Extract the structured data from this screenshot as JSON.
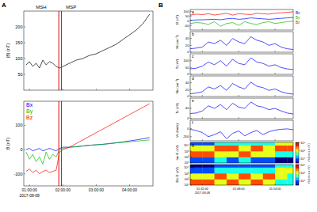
{
  "figure": {
    "panel_labels": [
      "A",
      "B"
    ]
  },
  "chart_data": [
    {
      "type": "line",
      "ylabel": "|B| (nT)",
      "x": [
        0.9,
        1.0,
        1.1,
        1.2,
        1.3,
        1.4,
        1.5,
        1.6,
        1.7,
        1.8,
        1.9,
        2.0,
        2.2,
        2.4,
        2.6,
        2.8,
        3.0,
        3.2,
        3.4,
        3.6,
        3.8,
        4.0,
        4.2,
        4.4,
        4.6
      ],
      "series": [
        {
          "color": "#000000",
          "values": [
            80,
            90,
            75,
            85,
            70,
            95,
            80,
            90,
            85,
            75,
            70,
            75,
            85,
            95,
            100,
            110,
            115,
            125,
            135,
            145,
            160,
            175,
            190,
            210,
            240
          ]
        }
      ],
      "xlim": [
        0.83,
        4.7
      ],
      "xticks": [
        {
          "value": 1,
          "label": "01:00:00"
        },
        {
          "value": 2,
          "label": "02:00:00"
        },
        {
          "value": 3,
          "label": "03:00:00"
        },
        {
          "value": 4,
          "label": "04:00:00"
        }
      ],
      "ylim": [
        0,
        250
      ],
      "yticks": [
        50,
        100,
        150,
        200
      ],
      "tick_labels": "y",
      "annotations": [
        {
          "text": "MSH",
          "x": 1.35
        },
        {
          "text": "MSP",
          "x": 2.25
        }
      ],
      "vlines": {
        "values": [
          1.88,
          1.96
        ],
        "color": "#e00000"
      }
    },
    {
      "type": "line",
      "ylabel": "B (nT)",
      "xlabel": "2017-08-08",
      "legend": "upper left",
      "x": [
        0.9,
        1.0,
        1.1,
        1.2,
        1.3,
        1.4,
        1.5,
        1.6,
        1.7,
        1.8,
        1.9,
        2.0,
        2.2,
        2.4,
        2.6,
        2.8,
        3.0,
        3.2,
        3.4,
        3.6,
        3.8,
        4.0,
        4.2,
        4.4,
        4.6
      ],
      "series": [
        {
          "name": "Bx",
          "color": "#0000ff",
          "values": [
            0,
            5,
            -5,
            0,
            5,
            -5,
            0,
            5,
            0,
            -5,
            5,
            10,
            10,
            12,
            15,
            18,
            20,
            22,
            25,
            28,
            32,
            36,
            40,
            45,
            50
          ]
        },
        {
          "name": "By",
          "color": "#00c000",
          "values": [
            -10,
            -40,
            -20,
            -50,
            -30,
            -60,
            -10,
            -40,
            -20,
            -30,
            0,
            5,
            10,
            12,
            15,
            18,
            20,
            22,
            25,
            28,
            30,
            32,
            35,
            38,
            40
          ]
        },
        {
          "name": "Bz",
          "color": "#ff0000",
          "values": [
            -90,
            -80,
            -95,
            -85,
            -100,
            -90,
            -85,
            -95,
            -90,
            -85,
            -10,
            0,
            10,
            25,
            40,
            55,
            70,
            85,
            100,
            115,
            130,
            145,
            160,
            175,
            190
          ]
        }
      ],
      "xlim": [
        0.83,
        4.7
      ],
      "xticks": [
        {
          "value": 1,
          "label": "01:00:00"
        },
        {
          "value": 2,
          "label": "02:00:00"
        },
        {
          "value": 3,
          "label": "03:00:00"
        },
        {
          "value": 4,
          "label": "04:00:00"
        }
      ],
      "ylim": [
        -150,
        200
      ],
      "yticks": [
        -100,
        0,
        100
      ],
      "vlines": {
        "values": [
          1.88,
          1.96
        ],
        "color": "#e00000"
      }
    },
    {
      "type": "line",
      "title": "a",
      "ylabel": "B (nT)",
      "legend": "right",
      "x": [
        100,
        101,
        102,
        103,
        104,
        105,
        106,
        107,
        108,
        109,
        110,
        111,
        112,
        113,
        114,
        115,
        116,
        117
      ],
      "series": [
        {
          "name": "Bx",
          "color": "#0000ff",
          "values": [
            5,
            8,
            10,
            12,
            15,
            10,
            20,
            25,
            15,
            20,
            30,
            25,
            20,
            15,
            20,
            25,
            30,
            35
          ]
        },
        {
          "name": "By",
          "color": "#00c000",
          "values": [
            -30,
            -20,
            -25,
            -40,
            -10,
            -60,
            -30,
            -20,
            -50,
            -10,
            -30,
            -40,
            -20,
            -10,
            -30,
            -20,
            -10,
            -5
          ]
        },
        {
          "name": "Bz",
          "color": "#ff0000",
          "values": [
            60,
            70,
            65,
            75,
            60,
            70,
            80,
            60,
            75,
            70,
            65,
            80,
            75,
            70,
            80,
            85,
            90,
            95
          ]
        }
      ],
      "xlim": [
        100,
        117
      ],
      "xticks": [
        {
          "value": 102,
          "label": "01:42:00"
        },
        {
          "value": 108,
          "label": "01:48:00"
        },
        {
          "value": 114,
          "label": "01:54:00"
        }
      ],
      "ylim": [
        -100,
        120
      ],
      "yticks": [
        -50,
        0,
        50,
        100
      ],
      "tick_labels": "y"
    },
    {
      "type": "line",
      "title": "b",
      "ylabel": "Ni (cm⁻³)",
      "x": [
        100,
        101,
        102,
        103,
        104,
        105,
        106,
        107,
        108,
        109,
        110,
        111,
        112,
        113,
        114,
        115,
        116,
        117
      ],
      "series": [
        {
          "color": "#0000ff",
          "values": [
            10,
            12,
            15,
            30,
            25,
            35,
            20,
            40,
            30,
            25,
            45,
            35,
            30,
            20,
            25,
            15,
            10,
            8
          ]
        }
      ],
      "xlim": [
        100,
        117
      ],
      "xticks": [
        {
          "value": 102,
          "label": "01:42:00"
        },
        {
          "value": 108,
          "label": "01:48:00"
        },
        {
          "value": 114,
          "label": "01:54:00"
        }
      ],
      "ylim": [
        0,
        60
      ],
      "yticks": [
        0,
        20,
        40
      ],
      "tick_labels": "y"
    },
    {
      "type": "line",
      "title": "c",
      "ylabel": "Ti (eV)",
      "x": [
        100,
        101,
        102,
        103,
        104,
        105,
        106,
        107,
        108,
        109,
        110,
        111,
        112,
        113,
        114,
        115,
        116,
        117
      ],
      "series": [
        {
          "color": "#0000ff",
          "values": [
            40,
            45,
            60,
            90,
            70,
            100,
            60,
            110,
            80,
            70,
            120,
            90,
            80,
            60,
            70,
            50,
            40,
            35
          ]
        }
      ],
      "xlim": [
        100,
        117
      ],
      "xticks": [
        {
          "value": 102,
          "label": "01:42:00"
        },
        {
          "value": 108,
          "label": "01:48:00"
        },
        {
          "value": 114,
          "label": "01:54:00"
        }
      ],
      "ylim": [
        0,
        150
      ],
      "yticks": [
        0,
        50,
        100
      ],
      "tick_labels": "y"
    },
    {
      "type": "line",
      "title": "d",
      "ylabel": "Ne (cm⁻³)",
      "x": [
        100,
        101,
        102,
        103,
        104,
        105,
        106,
        107,
        108,
        109,
        110,
        111,
        112,
        113,
        114,
        115,
        116,
        117
      ],
      "series": [
        {
          "color": "#0000ff",
          "values": [
            8,
            10,
            14,
            28,
            22,
            32,
            18,
            38,
            28,
            22,
            42,
            30,
            26,
            18,
            22,
            14,
            9,
            7
          ]
        }
      ],
      "xlim": [
        100,
        117
      ],
      "xticks": [
        {
          "value": 102,
          "label": "01:42:00"
        },
        {
          "value": 108,
          "label": "01:48:00"
        },
        {
          "value": 114,
          "label": "01:54:00"
        }
      ],
      "ylim": [
        0,
        60
      ],
      "yticks": [
        0,
        20,
        40
      ],
      "tick_labels": "y"
    },
    {
      "type": "line",
      "title": "e",
      "ylabel": "Te (eV)",
      "x": [
        100,
        101,
        102,
        103,
        104,
        105,
        106,
        107,
        108,
        109,
        110,
        111,
        112,
        113,
        114,
        115,
        116,
        117
      ],
      "series": [
        {
          "color": "#0000ff",
          "values": [
            20,
            22,
            30,
            50,
            40,
            55,
            35,
            60,
            45,
            40,
            65,
            50,
            45,
            35,
            40,
            30,
            22,
            18
          ]
        }
      ],
      "xlim": [
        100,
        117
      ],
      "xticks": [
        {
          "value": 102,
          "label": "01:42:00"
        },
        {
          "value": 108,
          "label": "01:48:00"
        },
        {
          "value": 114,
          "label": "01:54:00"
        }
      ],
      "ylim": [
        0,
        80
      ],
      "yticks": [
        0,
        40
      ],
      "tick_labels": "y"
    },
    {
      "type": "line",
      "title": "f",
      "ylabel": "Vx (km/s)",
      "x": [
        100,
        101,
        102,
        103,
        104,
        105,
        106,
        107,
        108,
        109,
        110,
        111,
        112,
        113,
        114,
        115,
        116,
        117
      ],
      "series": [
        {
          "color": "#0000ff",
          "values": [
            -20,
            -50,
            -100,
            -200,
            -150,
            -80,
            -250,
            -120,
            -60,
            -180,
            -100,
            -50,
            -150,
            -80,
            -40,
            -20,
            -10,
            -30
          ]
        }
      ],
      "xlim": [
        100,
        117
      ],
      "xticks": [
        {
          "value": 102,
          "label": "01:42:00"
        },
        {
          "value": 108,
          "label": "01:48:00"
        },
        {
          "value": 114,
          "label": "01:54:00"
        }
      ],
      "ylim": [
        -300,
        200
      ],
      "yticks": [
        -200,
        0
      ],
      "tick_labels": "y"
    },
    {
      "type": "heatmap",
      "title": "g",
      "ylabel": "Ion E (eV)",
      "log": "y",
      "x_edges": [
        100,
        102,
        104,
        106,
        108,
        110,
        112,
        114,
        116,
        117
      ],
      "y_edges": [
        10,
        100,
        1000,
        10000,
        30000
      ],
      "cells": [
        [
          4,
          4,
          5,
          4,
          5,
          4,
          4,
          3,
          3
        ],
        [
          7,
          7,
          6,
          6,
          7,
          6,
          6,
          5,
          5
        ],
        [
          6,
          6,
          7,
          7,
          6,
          7,
          6,
          7,
          7
        ],
        [
          4,
          4,
          5,
          5,
          5,
          5,
          5,
          6,
          6
        ]
      ],
      "colorbar": {
        "range": [
          3,
          8
        ],
        "ticks": [
          {
            "value": 4,
            "label": "10⁴"
          },
          {
            "value": 6,
            "label": "10⁶"
          },
          {
            "value": 8,
            "label": "10⁸"
          }
        ],
        "label": "eV/(cm² s sr eV)"
      },
      "xlim": [
        100,
        117
      ],
      "xticks": [
        {
          "value": 102,
          "label": "01:42:00"
        },
        {
          "value": 108,
          "label": "01:48:00"
        },
        {
          "value": 114,
          "label": "01:54:00"
        }
      ],
      "ylim": [
        10,
        30000
      ],
      "yticks": [
        {
          "value": 10,
          "label": "10¹"
        },
        {
          "value": 100,
          "label": "10²"
        },
        {
          "value": 1000,
          "label": "10³"
        },
        {
          "value": 10000,
          "label": "10⁴"
        }
      ],
      "tick_labels": "y"
    },
    {
      "type": "heatmap",
      "title": "h",
      "ylabel": "Ele E (eV)",
      "xlabel": "2017-08-08",
      "log": "y",
      "x_edges": [
        100,
        102,
        104,
        106,
        108,
        110,
        112,
        114,
        116,
        117
      ],
      "y_edges": [
        10,
        100,
        1000,
        10000,
        30000
      ],
      "cells": [
        [
          7,
          7,
          6,
          7,
          6,
          7,
          6,
          5,
          5
        ],
        [
          6,
          6,
          7,
          6,
          7,
          6,
          7,
          6,
          5
        ],
        [
          4,
          4,
          5,
          5,
          5,
          5,
          5,
          6,
          6
        ],
        [
          3,
          3,
          4,
          4,
          4,
          4,
          4,
          5,
          5
        ]
      ],
      "colorbar": {
        "range": [
          3,
          8
        ],
        "ticks": [
          {
            "value": 4,
            "label": "10⁴"
          },
          {
            "value": 6,
            "label": "10⁶"
          },
          {
            "value": 8,
            "label": "10⁸"
          }
        ],
        "label": "eV/(cm² s sr eV)"
      },
      "xlim": [
        100,
        117
      ],
      "xticks": [
        {
          "value": 102,
          "label": "01:42:00"
        },
        {
          "value": 108,
          "label": "01:48:00"
        },
        {
          "value": 114,
          "label": "01:54:00"
        }
      ],
      "ylim": [
        10,
        30000
      ],
      "yticks": [
        {
          "value": 10,
          "label": "10¹"
        },
        {
          "value": 100,
          "label": "10²"
        },
        {
          "value": 1000,
          "label": "10³"
        },
        {
          "value": 10000,
          "label": "10⁴"
        }
      ]
    }
  ]
}
